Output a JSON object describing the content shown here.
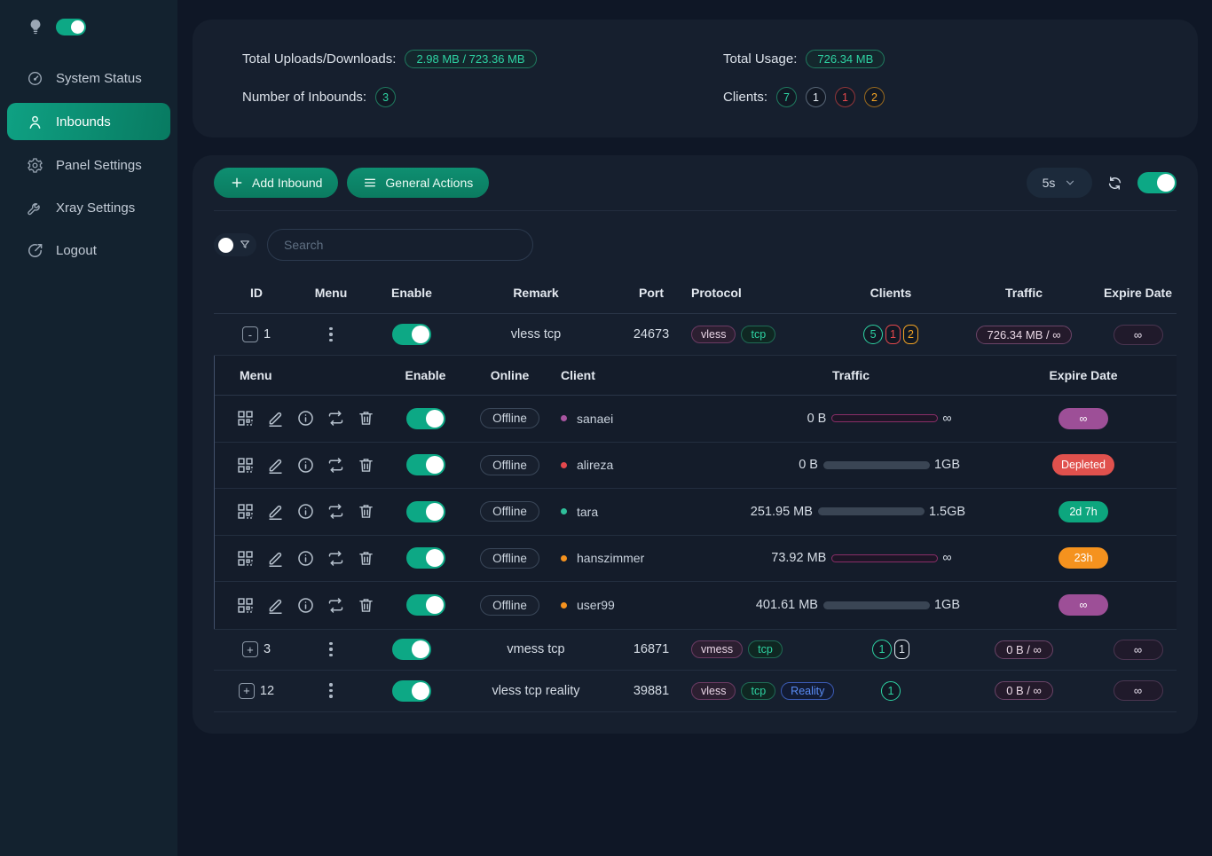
{
  "colors": {
    "accent_teal": "#0e8f71",
    "toggle_on": "#0da885",
    "status_green": "#2ed3a3",
    "status_red": "#e5484d",
    "status_orange": "#f5a524",
    "expire_purple": "#9d4f97",
    "expire_red": "#e0514d",
    "expire_green": "#0da67e",
    "expire_orange": "#f5921e",
    "reality_blue": "#5a8cf5"
  },
  "sidebar": {
    "items": [
      {
        "label": "System Status"
      },
      {
        "label": "Inbounds"
      },
      {
        "label": "Panel Settings"
      },
      {
        "label": "Xray Settings"
      },
      {
        "label": "Logout"
      }
    ]
  },
  "stats": {
    "uploads_label": "Total Uploads/Downloads:",
    "uploads_value": "2.98 MB / 723.36 MB",
    "usage_label": "Total Usage:",
    "usage_value": "726.34 MB",
    "inbounds_label": "Number of Inbounds:",
    "inbounds_value": "3",
    "clients_label": "Clients:",
    "clients_counts": {
      "total": "7",
      "neutral": "1",
      "depleted": "1",
      "expiring": "2"
    }
  },
  "toolbar": {
    "add_inbound_label": "Add Inbound",
    "general_actions_label": "General Actions",
    "refresh_interval": "5s"
  },
  "search": {
    "placeholder": "Search"
  },
  "table": {
    "headers": {
      "id": "ID",
      "menu": "Menu",
      "enable": "Enable",
      "remark": "Remark",
      "port": "Port",
      "protocol": "Protocol",
      "clients": "Clients",
      "traffic": "Traffic",
      "expire": "Expire Date"
    },
    "rows": [
      {
        "id": "1",
        "expand": "-",
        "remark": "vless tcp",
        "port": "24673",
        "protocols": [
          "vless",
          "tcp"
        ],
        "client_counts": [
          {
            "value": "5"
          },
          {
            "value": "1"
          },
          {
            "value": "2"
          }
        ],
        "traffic": "726.34 MB / ∞",
        "expire": "∞"
      },
      {
        "id": "3",
        "expand": "+",
        "remark": "vmess tcp",
        "port": "16871",
        "protocols": [
          "vmess",
          "tcp"
        ],
        "client_counts": [
          {
            "value": "1"
          },
          {
            "value": "1"
          }
        ],
        "traffic": "0 B / ∞",
        "expire": "∞"
      },
      {
        "id": "12",
        "expand": "+",
        "remark": "vless tcp reality",
        "port": "39881",
        "protocols": [
          "vless",
          "tcp",
          "Reality"
        ],
        "client_counts": [
          {
            "value": "1"
          }
        ],
        "traffic": "0 B / ∞",
        "expire": "∞"
      }
    ]
  },
  "subtable": {
    "headers": {
      "menu": "Menu",
      "enable": "Enable",
      "online": "Online",
      "client": "Client",
      "traffic": "Traffic",
      "expire": "Expire Date"
    },
    "clients": [
      {
        "name": "sanaei",
        "status": "Offline",
        "dot_color": "#a855a0",
        "used": "0 B",
        "limit": "∞",
        "fill_pct": 100,
        "fill_color": "#2a1430",
        "expire_label": "∞",
        "expire_bg": "#9d4f97"
      },
      {
        "name": "alireza",
        "status": "Offline",
        "dot_color": "#e5484d",
        "used": "0 B",
        "limit": "1GB",
        "fill_pct": 0,
        "fill_color": "#3d4859",
        "expire_label": "Depleted",
        "expire_bg": "#e0514d"
      },
      {
        "name": "tara",
        "status": "Offline",
        "dot_color": "#2fbf9a",
        "used": "251.95 MB",
        "limit": "1.5GB",
        "fill_pct": 16,
        "fill_color": "#0da67e",
        "expire_label": "2d 7h",
        "expire_bg": "#0da67e"
      },
      {
        "name": "hanszimmer",
        "status": "Offline",
        "dot_color": "#f5921e",
        "used": "73.92 MB",
        "limit": "∞",
        "fill_pct": 100,
        "fill_color": "#2a1430",
        "expire_label": "23h",
        "expire_bg": "#f5921e"
      },
      {
        "name": "user99",
        "status": "Offline",
        "dot_color": "#f5921e",
        "used": "401.61 MB",
        "limit": "1GB",
        "fill_pct": 39,
        "fill_color": "#f5921e",
        "expire_label": "∞",
        "expire_bg": "#9d4f97"
      }
    ]
  }
}
